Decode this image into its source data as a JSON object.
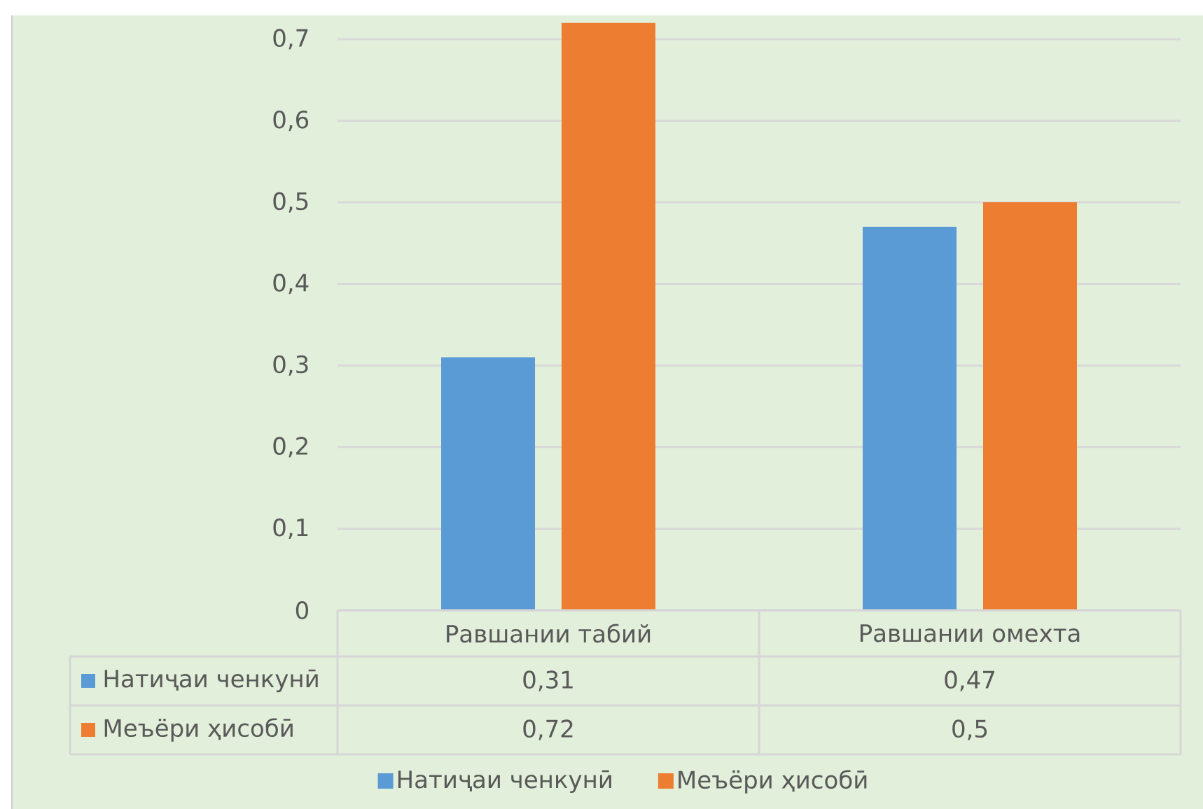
{
  "chart_data": {
    "type": "bar",
    "categories": [
      "Равшании табий",
      "Равшании омехта"
    ],
    "series": [
      {
        "name": "Натиҷаи ченкунӣ",
        "color": "#5b9bd5",
        "values": [
          0.31,
          0.47
        ],
        "value_labels": [
          "0,31",
          "0,47"
        ]
      },
      {
        "name": "Меъёри ҳисобӣ",
        "color": "#ed7d31",
        "values": [
          0.72,
          0.5
        ],
        "value_labels": [
          "0,72",
          "0,5"
        ]
      }
    ],
    "ylim": [
      0,
      0.73
    ],
    "yticks": [
      0,
      {
        "value": 0.1,
        "label": "0,1"
      },
      {
        "value": 0.2,
        "label": "0,2"
      },
      {
        "value": 0.3,
        "label": "0,3"
      },
      {
        "value": 0.4,
        "label": "0,4"
      },
      {
        "value": 0.5,
        "label": "0,5"
      },
      {
        "value": 0.6,
        "label": "0,6"
      },
      {
        "value": 0.7,
        "label": "0,7"
      }
    ],
    "grid": "y",
    "legend": "bottom"
  }
}
